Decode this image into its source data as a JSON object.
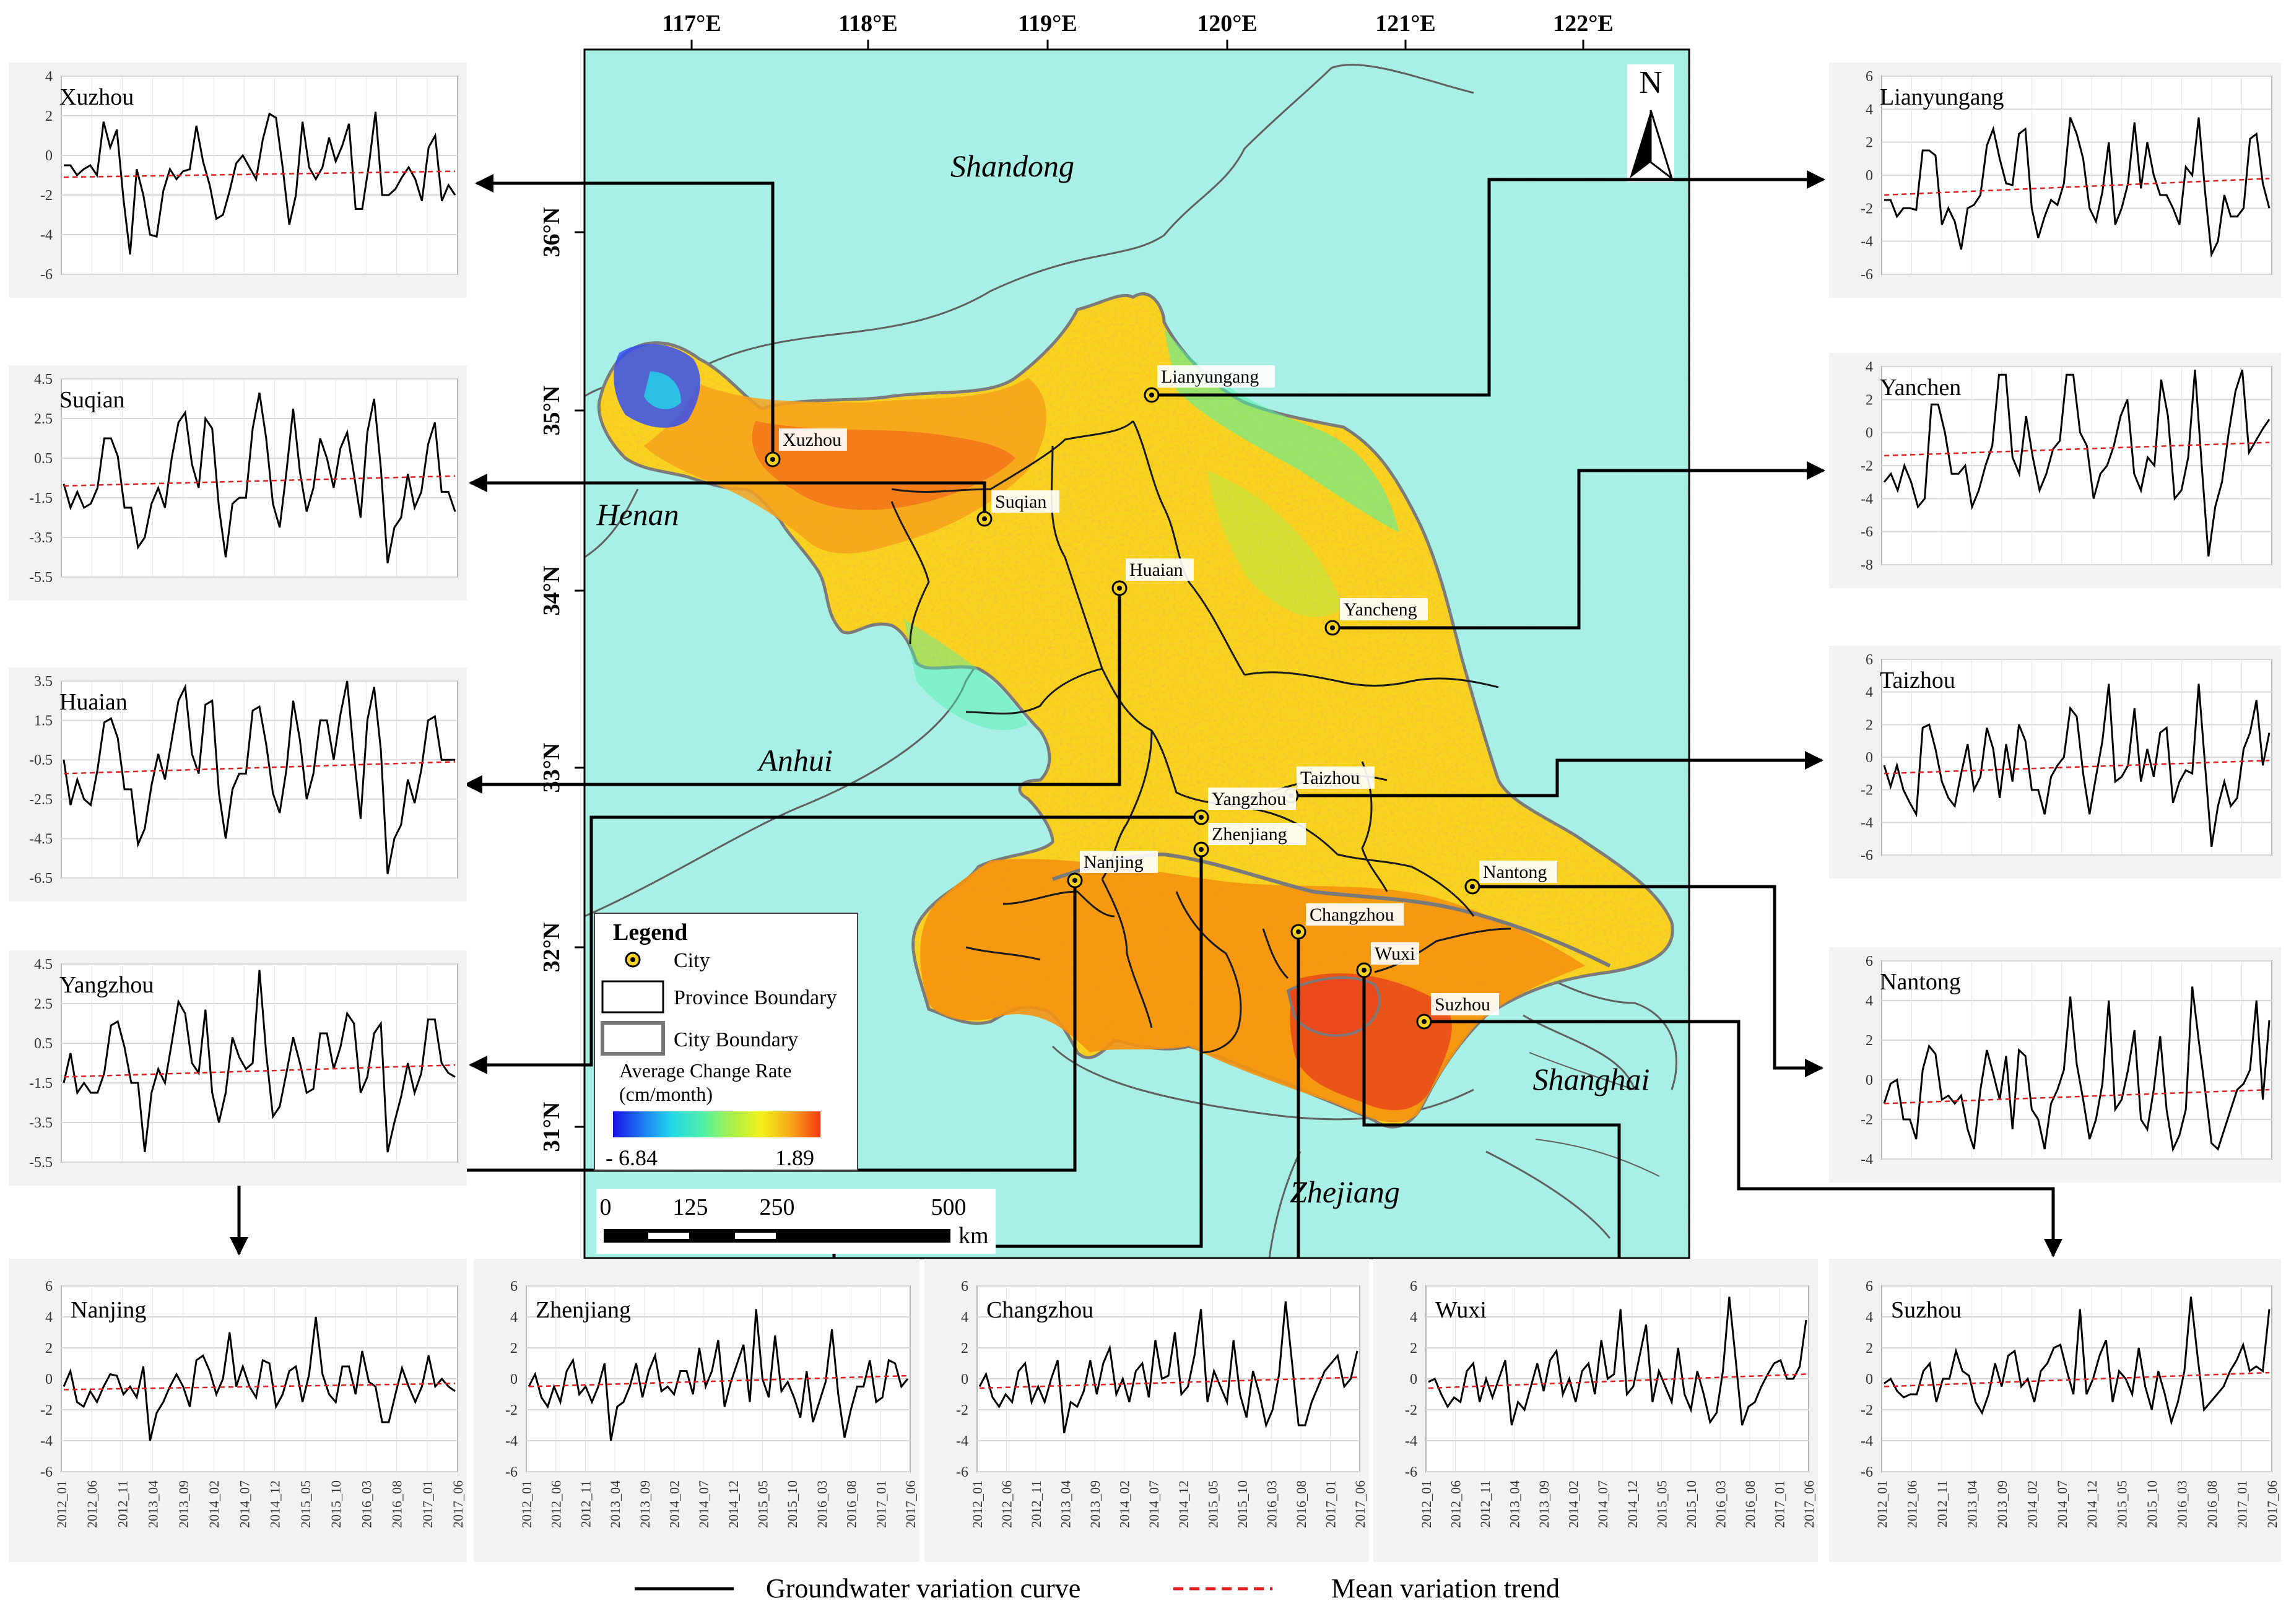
{
  "map": {
    "lon_labels": [
      "117°E",
      "118°E",
      "119°E",
      "120°E",
      "121°E",
      "122°E"
    ],
    "lat_labels": [
      "36°N",
      "35°N",
      "34°N",
      "33°N",
      "32°N",
      "31°N"
    ],
    "regions": [
      "Shandong",
      "Henan",
      "Anhui",
      "Zhejiang",
      "Shanghai"
    ],
    "north_label": "N",
    "legend": {
      "title": "Legend",
      "city": "City",
      "province_boundary": "Province Boundary",
      "city_boundary": "City Boundary",
      "rate_title_1": "Average Change Rate",
      "rate_title_2": "(cm/month)",
      "rate_min": "- 6.84",
      "rate_max": "1.89",
      "gradient_colors": [
        "#1a10e8",
        "#1e7cf2",
        "#22d8e8",
        "#4df0a8",
        "#a8f04a",
        "#f2f21a",
        "#f8a81a",
        "#f23a10"
      ]
    },
    "scale": {
      "labels": [
        "0",
        "125",
        "250",
        "500"
      ],
      "unit": "km"
    },
    "colors": {
      "background": "#a8f0e6",
      "land_main": "#f7d21e",
      "land_south": "#f4920f",
      "land_north": "#f7a21c",
      "highlight": "#e8481a",
      "low": "#3650f0"
    },
    "cities": [
      "Xuzhou",
      "Suqian",
      "Lianyungang",
      "Huaian",
      "Yancheng",
      "Taizhou",
      "Yangzhou",
      "Zhenjiang",
      "Nanjing",
      "Nantong",
      "Changzhou",
      "Wuxi",
      "Suzhou"
    ]
  },
  "chart_data": [
    {
      "type": "line",
      "title": "Xuzhou",
      "yticks": [
        "4",
        "2",
        "0",
        "-2",
        "-4",
        "-6"
      ],
      "ylim": [
        -6,
        4
      ],
      "values": [
        -0.5,
        -0.5,
        -1,
        -0.7,
        -0.5,
        -1,
        1.7,
        0.4,
        1.3,
        -2.2,
        -5,
        -0.7,
        -2,
        -4,
        -4.1,
        -1.8,
        -0.7,
        -1.2,
        -0.8,
        -0.7,
        1.5,
        -0.3,
        -1.5,
        -3.2,
        -3,
        -1.8,
        -0.4,
        0,
        -0.6,
        -1.2,
        0.8,
        2.1,
        1.9,
        -0.6,
        -3.5,
        -2,
        1.7,
        -0.6,
        -1.2,
        -0.6,
        0.9,
        -0.3,
        0.5,
        1.6,
        -2.7,
        -2.7,
        -0.5,
        2.2,
        -2,
        -2,
        -1.7,
        -1.1,
        -0.6,
        -1.2,
        -2.3,
        0.4,
        1,
        -2.3,
        -1.5,
        -2
      ],
      "trend": [
        -1.1,
        -0.8
      ]
    },
    {
      "type": "line",
      "title": "Suqian",
      "yticks": [
        "4.5",
        "2.5",
        "0.5",
        "-1.5",
        "-3.5",
        "-5.5"
      ],
      "ylim": [
        -5.5,
        4.5
      ],
      "values": [
        -0.8,
        -2,
        -1.2,
        -2,
        -1.8,
        -1,
        1.5,
        1.5,
        0.6,
        -2,
        -2,
        -4,
        -3.5,
        -1.8,
        -1,
        -2,
        0.5,
        2.3,
        2.8,
        0.2,
        -1,
        2.5,
        2,
        -2,
        -4.5,
        -1.8,
        -1.5,
        -1.5,
        2,
        3.8,
        1.5,
        -1.8,
        -3,
        -0.2,
        3,
        -0.2,
        -2.2,
        -1,
        1.5,
        0.5,
        -1,
        1,
        1.8,
        -0.3,
        -2.5,
        1.8,
        3.5,
        0,
        -4.8,
        -3,
        -2.5,
        -0.3,
        -2,
        -1.2,
        1.2,
        2.3,
        -1.2,
        -1.2,
        -2.2
      ],
      "trend": [
        -0.9,
        -0.4
      ]
    },
    {
      "type": "line",
      "title": "Huaian",
      "yticks": [
        "3.5",
        "1.5",
        "-0.5",
        "-2.5",
        "-4.5",
        "-6.5"
      ],
      "ylim": [
        -6.5,
        3.5
      ],
      "values": [
        -0.5,
        -2.8,
        -1.5,
        -2.5,
        -2.8,
        -1,
        1.4,
        1.6,
        0.6,
        -2,
        -2,
        -4.8,
        -4,
        -1.8,
        -0.2,
        -1.5,
        0.5,
        2.5,
        3.2,
        -0.2,
        -1.2,
        2.3,
        2.5,
        -2.2,
        -4.5,
        -2,
        -1.2,
        -1.2,
        2,
        2.2,
        0.3,
        -2.2,
        -3.2,
        -1,
        2.5,
        0.5,
        -2.5,
        -1.2,
        1.5,
        1.5,
        -0.5,
        1.8,
        3.5,
        -0.3,
        -3.5,
        1.5,
        3.2,
        0,
        -6.3,
        -4.5,
        -3.8,
        -1.5,
        -2.7,
        -1,
        1.5,
        1.7,
        -0.5,
        -0.5,
        -0.5
      ],
      "trend": [
        -1.2,
        -0.6
      ]
    },
    {
      "type": "line",
      "title": "Yangzhou",
      "yticks": [
        "4.5",
        "2.5",
        "0.5",
        "-1.5",
        "-3.5",
        "-5.5"
      ],
      "ylim": [
        -5.5,
        4.5
      ],
      "values": [
        -1.5,
        0,
        -2,
        -1.5,
        -2,
        -2,
        -1,
        1.4,
        1.6,
        0.3,
        -1.5,
        -1.5,
        -5,
        -2,
        -0.8,
        -1.5,
        0.5,
        2.6,
        2,
        -0.5,
        -1,
        2.2,
        -2,
        -3.5,
        -2,
        0.8,
        -0.2,
        -0.8,
        -0.5,
        4.2,
        0,
        -3.2,
        -2.7,
        -1,
        0.8,
        -0.5,
        -2,
        -1.8,
        1,
        1,
        -0.8,
        0.3,
        2,
        1.5,
        -2,
        -1.2,
        1,
        1.5,
        -5,
        -3.5,
        -2.2,
        -0.5,
        -2,
        -1,
        1.7,
        1.7,
        -0.5,
        -1,
        -1.2
      ],
      "trend": [
        -1.2,
        -0.6
      ]
    },
    {
      "type": "line",
      "title": "Lianyungang",
      "yticks": [
        "6",
        "4",
        "2",
        "0",
        "-2",
        "-4",
        "-6"
      ],
      "ylim": [
        -6,
        6
      ],
      "values": [
        -1.5,
        -1.5,
        -2.5,
        -2,
        -2,
        -2.1,
        1.5,
        1.5,
        1.2,
        -3,
        -2,
        -2.8,
        -4.5,
        -2,
        -1.8,
        -1.2,
        1.8,
        2.8,
        1,
        -0.5,
        -0.6,
        2.5,
        2.8,
        -2,
        -3.8,
        -2.5,
        -1.5,
        -1.8,
        -0.5,
        3.5,
        2.5,
        1,
        -2,
        -2.8,
        -1,
        2,
        -3,
        -2,
        -0.5,
        3.2,
        -0.8,
        2,
        0,
        -1.2,
        -1.2,
        -2,
        -3,
        0.5,
        0,
        3.5,
        -1,
        -4.8,
        -4,
        -1.2,
        -2.5,
        -2.5,
        -2,
        2.2,
        2.5,
        -0.5,
        -2
      ],
      "trend": [
        -1.2,
        -0.2
      ]
    },
    {
      "type": "line",
      "title": "Yanchen",
      "yticks": [
        "4",
        "2",
        "0",
        "-2",
        "-4",
        "-6",
        "-8"
      ],
      "ylim": [
        -8,
        4
      ],
      "values": [
        -3,
        -2.5,
        -3.5,
        -2,
        -3,
        -4.5,
        -4,
        1.7,
        1.7,
        0,
        -2.5,
        -2.5,
        -2,
        -4.5,
        -3.5,
        -2,
        -0.8,
        3.5,
        3.5,
        -1.5,
        -2.5,
        1,
        -1.5,
        -3.5,
        -2.5,
        -1,
        -0.5,
        3.5,
        3.5,
        0,
        -0.8,
        -4,
        -2.5,
        -2,
        -0.8,
        1,
        2,
        -2.5,
        -3.5,
        -1.5,
        -2,
        3.2,
        1,
        -4,
        -3.5,
        -1.5,
        3.8,
        -2,
        -7.5,
        -4.5,
        -3,
        0,
        2.5,
        3.8,
        -1.2,
        -0.5,
        0.2,
        0.8
      ],
      "trend": [
        -1.4,
        -0.6
      ]
    },
    {
      "type": "line",
      "title": "Taizhou",
      "yticks": [
        "6",
        "4",
        "2",
        "0",
        "-2",
        "-4",
        "-6"
      ],
      "ylim": [
        -6,
        6
      ],
      "values": [
        -0.5,
        -1.8,
        -0.5,
        -2,
        -2.8,
        -3.5,
        1.8,
        2,
        0.5,
        -1.5,
        -2.5,
        -3,
        -1,
        0.8,
        -2,
        -1.2,
        1.8,
        0.5,
        -2.5,
        0.8,
        -1.5,
        2,
        1,
        -2,
        -2,
        -3.5,
        -1.2,
        -0.5,
        0,
        3,
        2.5,
        -1,
        -3.5,
        -1.2,
        1,
        4.5,
        -1.5,
        -1.2,
        -0.5,
        3,
        -1.5,
        0.5,
        -1.2,
        1.5,
        1.8,
        -2.8,
        -1.5,
        -0.8,
        -1,
        4.5,
        -0.5,
        -5.5,
        -3,
        -1.5,
        -3,
        -2.5,
        0.5,
        1.5,
        3.5,
        -0.5,
        1.5
      ],
      "trend": [
        -1,
        -0.2
      ]
    },
    {
      "type": "line",
      "title": "Nantong",
      "yticks": [
        "6",
        "4",
        "2",
        "0",
        "-2",
        "-4"
      ],
      "ylim": [
        -4,
        6
      ],
      "values": [
        -1.2,
        -0.2,
        0,
        -2,
        -2,
        -3,
        0.5,
        1.7,
        1.3,
        -1,
        -0.8,
        -1.2,
        -0.8,
        -2.5,
        -3.5,
        -0.5,
        1.5,
        0.3,
        -1,
        1.2,
        -2.5,
        1.5,
        1.2,
        -1.5,
        -2,
        -3.5,
        -1.2,
        -0.5,
        0.5,
        4.2,
        0.8,
        -1,
        -3,
        -2,
        -0.2,
        4,
        -1.5,
        -1,
        0.5,
        2.5,
        -2,
        -2.5,
        -0.5,
        2.2,
        -1.5,
        -3.5,
        -2.8,
        -1.5,
        4.7,
        2,
        -0.5,
        -3.2,
        -3.5,
        -2.5,
        -1.5,
        -0.5,
        -0.2,
        0.5,
        4,
        -1,
        3
      ],
      "trend": [
        -1.2,
        -0.5
      ]
    },
    {
      "type": "line",
      "title": "Nanjing",
      "yticks": [
        "6",
        "4",
        "2",
        "0",
        "-2",
        "-4",
        "-6"
      ],
      "ylim": [
        -6,
        6
      ],
      "values": [
        -0.5,
        0.5,
        -1.5,
        -1.8,
        -0.8,
        -1.5,
        -0.5,
        0.3,
        0.2,
        -1,
        -0.5,
        -1.2,
        0.8,
        -4,
        -2.2,
        -1.5,
        -0.5,
        0.3,
        -0.5,
        -1.8,
        1.2,
        1.5,
        0.5,
        -1,
        0,
        3,
        -0.5,
        0.8,
        -0.5,
        -1.2,
        1.2,
        1,
        -1.8,
        -1,
        0.5,
        0.8,
        -1.5,
        0.3,
        4,
        0.3,
        -1,
        -1.5,
        0.8,
        0.8,
        -1,
        1.8,
        -0.2,
        -0.5,
        -2.8,
        -2.8,
        -1,
        0.7,
        -0.5,
        -1.5,
        -0.5,
        1.5,
        -0.5,
        0,
        -0.5,
        -0.8
      ],
      "trend": [
        -0.7,
        -0.3
      ]
    },
    {
      "type": "line",
      "title": "Zhenjiang",
      "yticks": [
        "6",
        "4",
        "2",
        "0",
        "-2",
        "-4",
        "-6"
      ],
      "ylim": [
        -6,
        6
      ],
      "values": [
        -0.5,
        0.3,
        -1.2,
        -1.8,
        -0.5,
        -1.5,
        0.5,
        1.2,
        -1,
        -0.5,
        -1.5,
        -0.5,
        1,
        -4,
        -1.8,
        -1.5,
        -0.5,
        1,
        -1.2,
        0.5,
        1.5,
        -0.8,
        -0.5,
        -1,
        0.5,
        0.5,
        -1,
        2,
        -0.5,
        0.5,
        2.5,
        -1.8,
        -0.2,
        1,
        2.2,
        -1.5,
        4.5,
        0,
        -1.2,
        2.8,
        -0.8,
        -0.2,
        -1.2,
        -2.5,
        0.5,
        -2.8,
        -1.5,
        -0.2,
        3.2,
        -1,
        -3.8,
        -2,
        -0.5,
        -0.5,
        1.2,
        -1.5,
        -1.2,
        1.2,
        1,
        -0.5,
        0
      ],
      "trend": [
        -0.5,
        0.2
      ]
    },
    {
      "type": "line",
      "title": "Changzhou",
      "yticks": [
        "6",
        "4",
        "2",
        "0",
        "-2",
        "-4",
        "-6"
      ],
      "ylim": [
        -6,
        6
      ],
      "values": [
        -0.5,
        0.3,
        -1.2,
        -1.8,
        -1,
        -1.5,
        0.5,
        1,
        -1.5,
        -0.5,
        -1.5,
        0,
        1.2,
        -3.5,
        -1.5,
        -1.8,
        -0.8,
        1.2,
        -1,
        1,
        2,
        -1,
        0,
        -1.5,
        0.5,
        1,
        -1.2,
        2.5,
        0,
        0.2,
        3,
        -1,
        -0.5,
        1.5,
        4.5,
        -1.5,
        0.5,
        -0.5,
        -1.5,
        2.5,
        -1,
        -2.5,
        0.5,
        -1,
        -3,
        -2,
        0.3,
        5,
        1,
        -3,
        -3,
        -1.5,
        -0.5,
        0.5,
        1,
        1.5,
        -0.5,
        0,
        1.8
      ],
      "trend": [
        -0.6,
        0.1
      ]
    },
    {
      "type": "line",
      "title": "Wuxi",
      "yticks": [
        "6",
        "4",
        "2",
        "0",
        "-2",
        "-4",
        "-6"
      ],
      "ylim": [
        -6,
        6
      ],
      "values": [
        -0.2,
        0,
        -1,
        -1.8,
        -1.2,
        -1.5,
        0.5,
        1,
        -1.5,
        0,
        -1.2,
        0,
        1.2,
        -3,
        -1.5,
        -2,
        -0.5,
        1,
        -0.8,
        1.2,
        1.8,
        -1,
        0,
        -1.5,
        0.5,
        1,
        -1,
        2.5,
        0,
        0.3,
        4.5,
        -1,
        -0.5,
        1.5,
        3.5,
        -1.5,
        0.5,
        -0.5,
        -1.5,
        2,
        -1,
        -2,
        0.5,
        -1,
        -2.8,
        -2.2,
        0.5,
        5.3,
        1.2,
        -3,
        -1.8,
        -1.5,
        -0.5,
        0.3,
        1,
        1.2,
        0,
        0,
        0.8,
        3.8
      ],
      "trend": [
        -0.6,
        0.3
      ]
    },
    {
      "type": "line",
      "title": "Suzhou",
      "yticks": [
        "6",
        "4",
        "2",
        "0",
        "-2",
        "-4",
        "-6"
      ],
      "ylim": [
        -6,
        6
      ],
      "values": [
        -0.3,
        0,
        -0.8,
        -1.2,
        -1,
        -1,
        0.5,
        1,
        -1.5,
        0,
        0,
        1.8,
        0.5,
        0.2,
        -1.5,
        -2.2,
        -1,
        1,
        -0.5,
        1.5,
        1.8,
        -0.5,
        0,
        -1.5,
        0.5,
        1,
        2,
        2.2,
        0.5,
        -1,
        4.5,
        -1,
        0,
        1.5,
        2.5,
        -1.5,
        0.5,
        0,
        -1,
        2,
        -0.5,
        -2,
        0.5,
        -1,
        -2.8,
        -1.5,
        0.5,
        5.3,
        1.5,
        -2,
        -1.5,
        -1,
        -0.5,
        0.5,
        1.2,
        2.2,
        0.5,
        0.8,
        0.5,
        4.5
      ],
      "trend": [
        -0.5,
        0.4
      ]
    }
  ],
  "xtick_labels": [
    "2012_01",
    "2012_06",
    "2012_11",
    "2013_04",
    "2013_09",
    "2014_02",
    "2014_07",
    "2014_12",
    "2015_05",
    "2015_10",
    "2016_03",
    "2016_08",
    "2017_01",
    "2017_06"
  ],
  "bottom_legend": {
    "curve": "Groundwater variation curve",
    "trend": "Mean variation trend"
  }
}
